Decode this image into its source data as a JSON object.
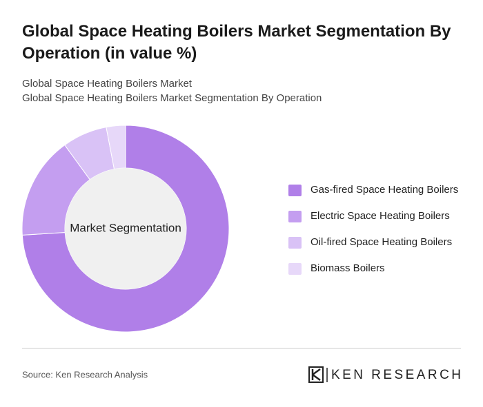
{
  "chart_data": {
    "type": "donut",
    "title": "Global Space Heating Boilers Market Segmentation By Operation (in value %)",
    "subtitle": [
      "Global Space Heating Boilers Market",
      "Global Space Heating Boilers Market Segmentation By Operation"
    ],
    "center_label": "Market Segmentation",
    "categories": [
      "Gas-fired Space Heating Boilers",
      "Electric Space Heating Boilers",
      "Oil-fired Space Heating Boilers",
      "Biomass Boilers"
    ],
    "values": [
      74,
      16,
      7,
      3
    ],
    "colors": [
      "#b07fe8",
      "#c49ef0",
      "#d9c2f6",
      "#e7d8f9"
    ]
  },
  "footer": {
    "source": "Source: Ken Research Analysis",
    "logo": "KEN RESEARCH"
  }
}
